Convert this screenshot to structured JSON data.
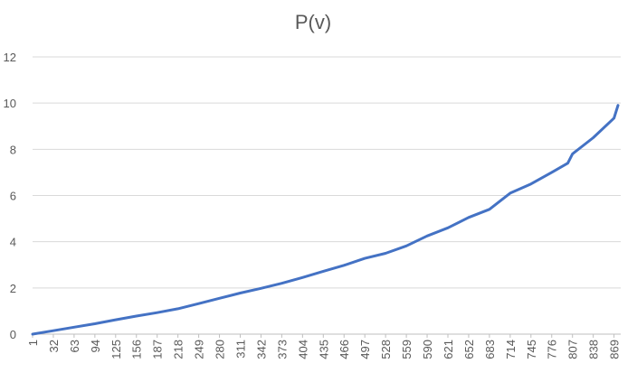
{
  "chart_data": {
    "type": "line",
    "title": "P(v)",
    "xlabel": "",
    "ylabel": "",
    "x_range": [
      1,
      879
    ],
    "ylim": [
      0,
      12
    ],
    "y_ticks": [
      0,
      2,
      4,
      6,
      8,
      10,
      12
    ],
    "x_tick_labels": [
      "1",
      "32",
      "63",
      "94",
      "125",
      "156",
      "187",
      "218",
      "249",
      "280",
      "311",
      "342",
      "373",
      "404",
      "435",
      "466",
      "497",
      "528",
      "559",
      "590",
      "621",
      "652",
      "683",
      "714",
      "745",
      "776",
      "807",
      "838",
      "869"
    ],
    "grid": "horizontal",
    "legend": "none",
    "series": [
      {
        "color": "#4472C4",
        "x": [
          1,
          32,
          63,
          94,
          125,
          156,
          187,
          218,
          249,
          280,
          311,
          342,
          373,
          404,
          435,
          466,
          497,
          528,
          559,
          590,
          621,
          652,
          683,
          714,
          745,
          776,
          800,
          807,
          838,
          869,
          875
        ],
        "y": [
          0.0,
          0.15,
          0.3,
          0.45,
          0.62,
          0.78,
          0.93,
          1.1,
          1.32,
          1.55,
          1.78,
          1.98,
          2.2,
          2.45,
          2.72,
          2.98,
          3.28,
          3.5,
          3.82,
          4.25,
          4.6,
          5.05,
          5.4,
          6.1,
          6.5,
          7.0,
          7.4,
          7.8,
          8.5,
          9.35,
          9.9
        ]
      }
    ]
  }
}
